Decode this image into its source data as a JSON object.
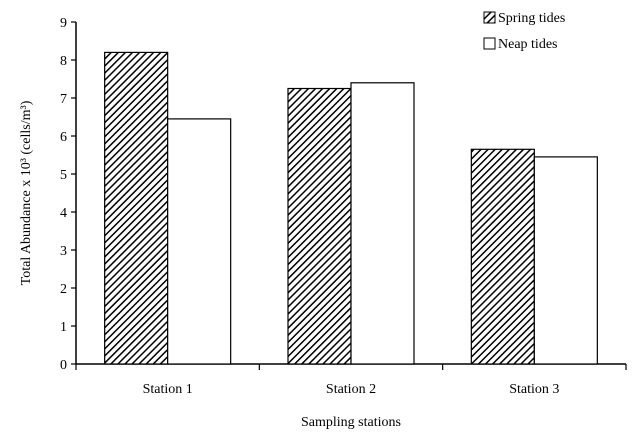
{
  "chart_data": {
    "type": "bar",
    "title": "",
    "xlabel": "Sampling stations",
    "ylabel": "Total Abundance x 10³ (cells/m³)",
    "categories": [
      "Station 1",
      "Station 2",
      "Station 3"
    ],
    "series": [
      {
        "name": "Spring tides",
        "values": [
          8.2,
          7.25,
          5.65
        ],
        "fill": "hatched"
      },
      {
        "name": "Neap tides",
        "values": [
          6.45,
          7.4,
          5.45
        ],
        "fill": "#ffffff"
      }
    ],
    "ylim": [
      0,
      9
    ],
    "yticks": [
      0,
      1,
      2,
      3,
      4,
      5,
      6,
      7,
      8,
      9
    ],
    "grid": false,
    "legend_position": "top-right",
    "colors": {
      "axis": "#000000",
      "bar_edge": "#000000",
      "hatch": "#000000",
      "neap_fill": "#ffffff"
    }
  }
}
